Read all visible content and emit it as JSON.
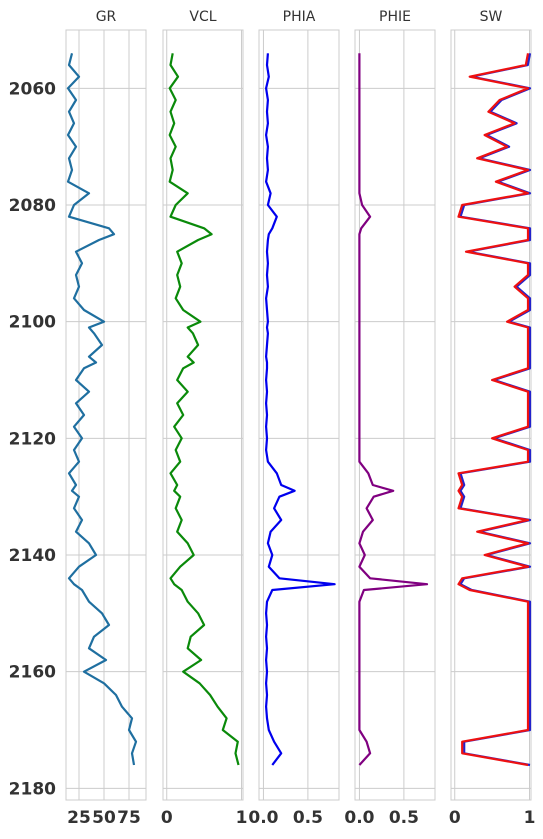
{
  "chart_data": {
    "type": "line",
    "layout": "well-log-tracks",
    "y_axis": {
      "label": "",
      "range": [
        2050,
        2182
      ],
      "inverted": true,
      "ticks": [
        2060,
        2080,
        2100,
        2120,
        2140,
        2160,
        2180
      ]
    },
    "depth": [
      2054,
      2056,
      2058,
      2060,
      2062,
      2064,
      2066,
      2068,
      2070,
      2072,
      2074,
      2076,
      2078,
      2080,
      2082,
      2084,
      2085,
      2086,
      2088,
      2090,
      2092,
      2094,
      2096,
      2098,
      2100,
      2101,
      2102,
      2104,
      2106,
      2107,
      2108,
      2110,
      2112,
      2114,
      2116,
      2118,
      2120,
      2122,
      2124,
      2126,
      2128,
      2129,
      2130,
      2132,
      2134,
      2136,
      2138,
      2140,
      2142,
      2144,
      2145,
      2146,
      2148,
      2150,
      2152,
      2154,
      2156,
      2158,
      2160,
      2162,
      2164,
      2166,
      2168,
      2170,
      2172,
      2174,
      2176
    ],
    "tracks": [
      {
        "name": "GR",
        "color": "#1f6fa0",
        "xlim": [
          12,
          92
        ],
        "xticks": [
          25,
          50,
          75
        ],
        "values": [
          18,
          15,
          25,
          14,
          22,
          15,
          20,
          14,
          22,
          15,
          18,
          14,
          35,
          20,
          15,
          55,
          60,
          45,
          22,
          28,
          22,
          25,
          20,
          30,
          50,
          35,
          40,
          48,
          35,
          42,
          30,
          22,
          35,
          22,
          30,
          20,
          28,
          20,
          25,
          15,
          22,
          18,
          25,
          20,
          28,
          22,
          35,
          42,
          25,
          15,
          20,
          28,
          35,
          48,
          55,
          40,
          35,
          52,
          30,
          50,
          62,
          68,
          78,
          75,
          82,
          78,
          80
        ]
      },
      {
        "name": "VCL",
        "color": "#0a8a0a",
        "xlim": [
          -0.05,
          1.02
        ],
        "xticks": [
          0,
          1
        ],
        "values": [
          0.08,
          0.05,
          0.15,
          0.04,
          0.12,
          0.05,
          0.1,
          0.04,
          0.12,
          0.05,
          0.08,
          0.04,
          0.28,
          0.12,
          0.05,
          0.5,
          0.6,
          0.42,
          0.14,
          0.2,
          0.14,
          0.18,
          0.12,
          0.22,
          0.45,
          0.28,
          0.35,
          0.42,
          0.28,
          0.36,
          0.22,
          0.14,
          0.28,
          0.14,
          0.22,
          0.1,
          0.2,
          0.12,
          0.18,
          0.05,
          0.14,
          0.1,
          0.18,
          0.12,
          0.2,
          0.14,
          0.28,
          0.36,
          0.18,
          0.05,
          0.1,
          0.2,
          0.28,
          0.42,
          0.5,
          0.32,
          0.28,
          0.46,
          0.22,
          0.44,
          0.58,
          0.68,
          0.8,
          0.75,
          0.95,
          0.92,
          0.96
        ]
      },
      {
        "name": "PHIA",
        "color": "#0000ee",
        "xlim": [
          -0.05,
          0.85
        ],
        "xticks": [
          0.0,
          0.5
        ],
        "values": [
          0.05,
          0.04,
          0.06,
          0.03,
          0.05,
          0.04,
          0.05,
          0.03,
          0.05,
          0.04,
          0.05,
          0.03,
          0.08,
          0.05,
          0.15,
          0.1,
          0.06,
          0.05,
          0.04,
          0.05,
          0.04,
          0.05,
          0.03,
          0.04,
          0.05,
          0.04,
          0.05,
          0.04,
          0.03,
          0.04,
          0.04,
          0.03,
          0.04,
          0.03,
          0.04,
          0.03,
          0.04,
          0.03,
          0.05,
          0.15,
          0.2,
          0.35,
          0.18,
          0.12,
          0.2,
          0.08,
          0.05,
          0.1,
          0.06,
          0.18,
          0.8,
          0.1,
          0.04,
          0.03,
          0.04,
          0.03,
          0.04,
          0.03,
          0.04,
          0.03,
          0.04,
          0.03,
          0.04,
          0.06,
          0.12,
          0.2,
          0.1
        ]
      },
      {
        "name": "PHIE",
        "color": "#800080",
        "xlim": [
          -0.05,
          0.85
        ],
        "xticks": [
          0.0,
          0.5
        ],
        "values": [
          0.0,
          0.0,
          0.0,
          0.0,
          0.0,
          0.0,
          0.0,
          0.0,
          0.0,
          0.0,
          0.0,
          0.0,
          0.0,
          0.03,
          0.12,
          0.02,
          0.0,
          0.0,
          0.0,
          0.0,
          0.0,
          0.0,
          0.0,
          0.0,
          0.0,
          0.0,
          0.0,
          0.0,
          0.0,
          0.0,
          0.0,
          0.0,
          0.0,
          0.0,
          0.0,
          0.0,
          0.0,
          0.0,
          0.0,
          0.1,
          0.15,
          0.38,
          0.16,
          0.08,
          0.15,
          0.04,
          0.0,
          0.06,
          0.0,
          0.12,
          0.76,
          0.05,
          0.0,
          0.0,
          0.0,
          0.0,
          0.0,
          0.0,
          0.0,
          0.0,
          0.0,
          0.0,
          0.0,
          0.0,
          0.08,
          0.12,
          0.0
        ]
      },
      {
        "name": "SW",
        "color": "#ee1111",
        "color2": "#2222cc",
        "xlim": [
          -0.05,
          1.02
        ],
        "xticks": [
          0,
          1
        ],
        "values": [
          0.98,
          0.95,
          0.2,
          0.98,
          0.6,
          0.45,
          0.8,
          0.4,
          0.7,
          0.3,
          0.98,
          0.55,
          0.98,
          0.1,
          0.05,
          0.98,
          0.98,
          0.98,
          0.15,
          0.98,
          0.98,
          0.8,
          0.98,
          0.98,
          0.7,
          0.98,
          0.98,
          0.98,
          0.98,
          0.98,
          0.98,
          0.5,
          0.98,
          0.98,
          0.98,
          0.98,
          0.5,
          0.98,
          0.98,
          0.05,
          0.1,
          0.05,
          0.1,
          0.05,
          0.98,
          0.3,
          0.98,
          0.4,
          0.98,
          0.1,
          0.05,
          0.2,
          0.98,
          0.98,
          0.98,
          0.98,
          0.98,
          0.98,
          0.98,
          0.98,
          0.98,
          0.98,
          0.98,
          0.98,
          0.1,
          0.1,
          0.98
        ]
      }
    ]
  }
}
